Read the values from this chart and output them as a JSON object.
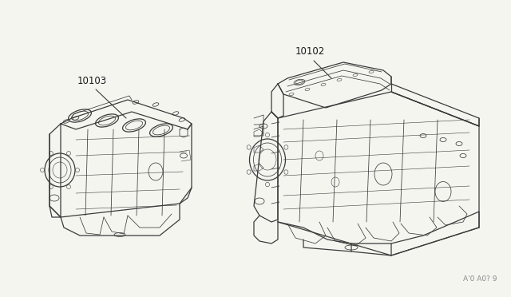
{
  "bg_color": "#f5f5f0",
  "fig_width": 6.4,
  "fig_height": 3.72,
  "dpi": 100,
  "label_10103": "10103",
  "label_10102": "10102",
  "line_color": "#3a3a3a",
  "text_color": "#1a1a1a",
  "font_size": 8.5,
  "ref_font_size": 6.5,
  "ref_text": "A'0 A0? 9"
}
